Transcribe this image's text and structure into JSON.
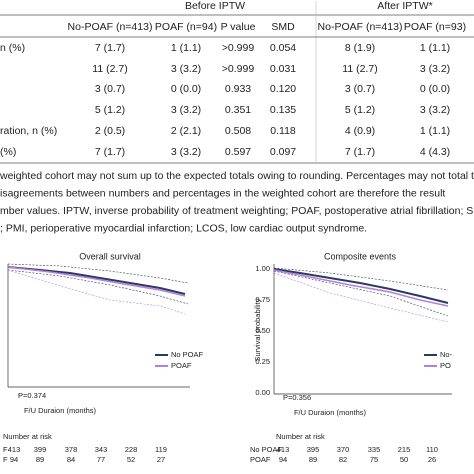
{
  "table": {
    "groups": [
      "Before IPTW",
      "After IPTW*"
    ],
    "columns": [
      "No-POAF (n=413)",
      "POAF (n=94)",
      "P value",
      "SMD",
      "No-POAF (n=413)",
      "POAF (n=93)"
    ],
    "rows": [
      {
        "label": "n (%)",
        "cells": [
          "7 (1.7)",
          "1 (1.1)",
          ">0.999",
          "0.054",
          "8 (1.9)",
          "1 (1.1)"
        ]
      },
      {
        "cells": [
          "11 (2.7)",
          "3 (3.2)",
          ">0.999",
          "0.031",
          "11 (2.7)",
          "3 (3.2)"
        ]
      },
      {
        "cells": [
          "3 (0.7)",
          "0 (0.0)",
          "0.933",
          "0.120",
          "3 (0.7)",
          "0 (0.0)"
        ]
      },
      {
        "cells": [
          "5 (1.2)",
          "3 (3.2)",
          "0.351",
          "0.135",
          "5 (1.2)",
          "3 (3.2)"
        ]
      },
      {
        "label": "ration, n (%)",
        "cells": [
          "2 (0.5)",
          "2 (2.1)",
          "0.508",
          "0.118",
          "4 (0.9)",
          "1 (1.1)"
        ]
      },
      {
        "label": "(%)",
        "cells": [
          "7 (1.7)",
          "3 (3.2)",
          "0.597",
          "0.097",
          "7 (1.7)",
          "4 (4.3)"
        ]
      }
    ]
  },
  "footnote": [
    "weighted cohort may not sum up to the expected totals owing to rounding. Percentages may not total t",
    "isagreements between numbers and percentages in the weighted cohort are therefore the result",
    "mber values. IPTW, inverse probability of treatment weighting; POAF, postoperative atrial fibrillation; SMD",
    "; PMI, perioperative myocardial infarction; LCOS, low cardiac output syndrome."
  ],
  "figures": [
    {
      "title": "Overall survival",
      "x_label": "F/U Duraion (months)",
      "legend": [
        "No POAF",
        "POAF"
      ],
      "p_value": "P=0.374",
      "risk_title": "Number at risk",
      "risk_groups": [
        "F",
        "F"
      ],
      "risk": [
        [
          "413",
          "399",
          "378",
          "343",
          "228",
          "119"
        ],
        [
          "94",
          "89",
          "84",
          "77",
          "52",
          "27"
        ]
      ]
    },
    {
      "title": "Composite events",
      "x_label": "F/U Duraion (months)",
      "y_label": "Survival probability",
      "yticks": [
        "1.00",
        "0.75",
        "0.50",
        "0.25",
        "0.00"
      ],
      "legend": [
        "No-",
        "PO"
      ],
      "p_value": "P=0.356",
      "risk_title": "Number at risk",
      "risk_groups": [
        "No POAF",
        "POAF"
      ],
      "risk": [
        [
          "413",
          "395",
          "370",
          "335",
          "215",
          "110"
        ],
        [
          "94",
          "89",
          "82",
          "75",
          "50",
          "26"
        ]
      ]
    }
  ]
}
